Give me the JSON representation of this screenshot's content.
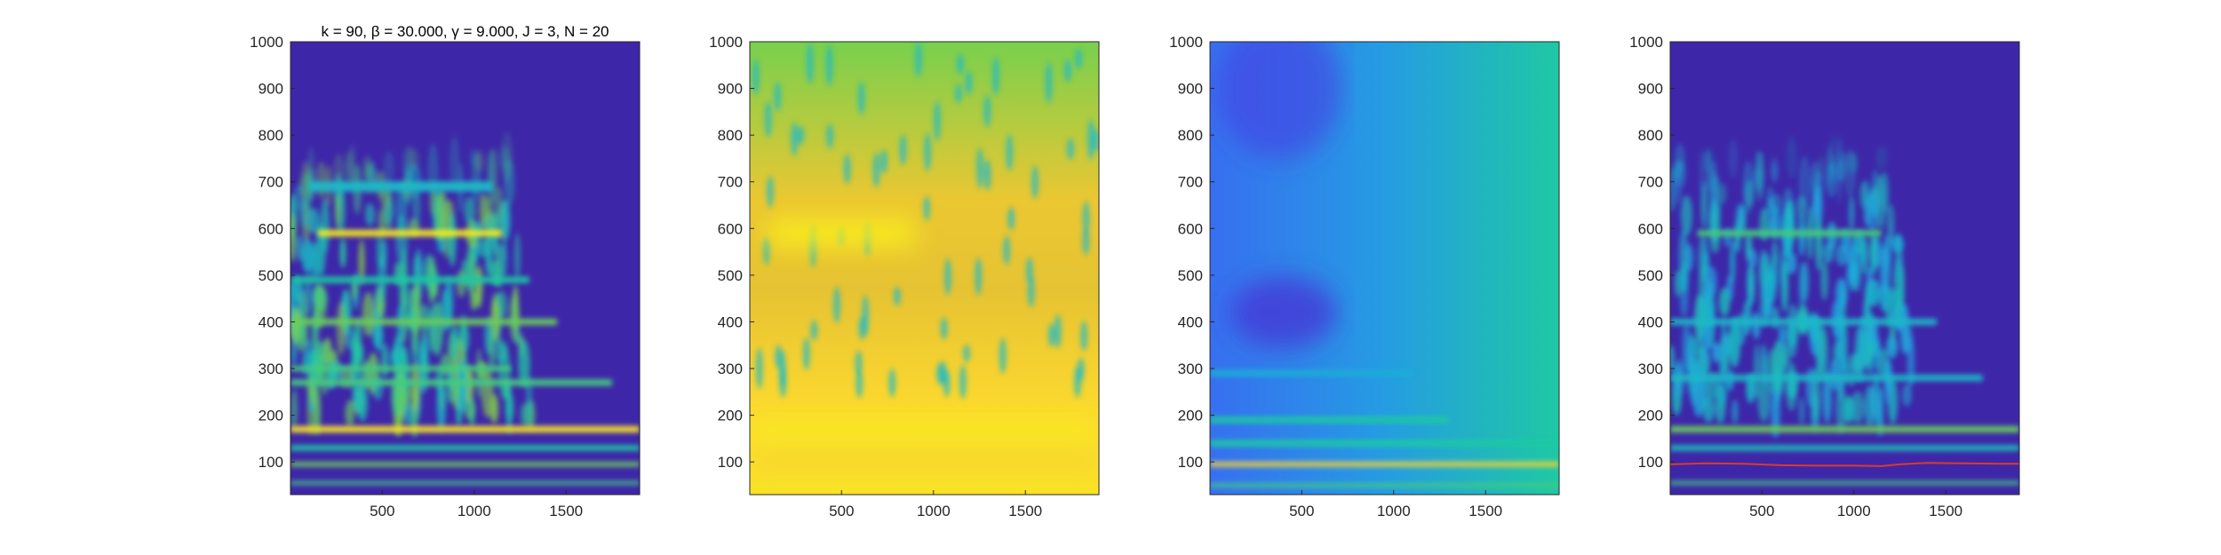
{
  "figure": {
    "title": "k = 90, β = 30.000, γ = 9.000, J = 3, N = 20"
  },
  "colors": {
    "background": "#3e26a8",
    "colormap": [
      "#3e26a8",
      "#4743f0",
      "#2d8cf0",
      "#19b5d0",
      "#1fc8a4",
      "#7cd04a",
      "#e0bd34",
      "#fbd730",
      "#f9fb15"
    ],
    "ridge_line": "#d93b2b"
  },
  "chart_data": [
    {
      "type": "heatmap",
      "panel": "spectrogram-1",
      "title": "k = 90, β = 30.000, γ = 9.000, J = 3, N = 20",
      "xlabel": "",
      "ylabel": "",
      "xlim": [
        1,
        1900
      ],
      "ylim": [
        30,
        1000
      ],
      "xticks": [
        500,
        1000,
        1500
      ],
      "yticks": [
        100,
        200,
        300,
        400,
        500,
        600,
        700,
        800,
        900,
        1000
      ],
      "grid": false,
      "bands": [
        {
          "y": 55,
          "x0": 1,
          "x1": 1900,
          "intensity": 0.55,
          "width": 8
        },
        {
          "y": 95,
          "x0": 1,
          "x1": 1900,
          "intensity": 0.6,
          "width": 10
        },
        {
          "y": 130,
          "x0": 1,
          "x1": 1900,
          "intensity": 0.5,
          "width": 12
        },
        {
          "y": 170,
          "x0": 1,
          "x1": 1900,
          "intensity": 0.92,
          "width": 14
        },
        {
          "y": 270,
          "x0": 1,
          "x1": 1750,
          "intensity": 0.55,
          "width": 14
        },
        {
          "y": 300,
          "x0": 1,
          "x1": 1200,
          "intensity": 0.55,
          "width": 12
        },
        {
          "y": 400,
          "x0": 1,
          "x1": 1450,
          "intensity": 0.6,
          "width": 14
        },
        {
          "y": 490,
          "x0": 1,
          "x1": 1300,
          "intensity": 0.5,
          "width": 14
        },
        {
          "y": 590,
          "x0": 150,
          "x1": 1150,
          "intensity": 0.95,
          "width": 14
        },
        {
          "y": 690,
          "x0": 100,
          "x1": 1100,
          "intensity": 0.4,
          "width": 22
        }
      ]
    },
    {
      "type": "heatmap",
      "panel": "spectrogram-2",
      "xlabel": "",
      "ylabel": "",
      "xlim": [
        1,
        1900
      ],
      "ylim": [
        30,
        1000
      ],
      "xticks": [
        500,
        1000,
        1500
      ],
      "yticks": [
        100,
        200,
        300,
        400,
        500,
        600,
        700,
        800,
        900,
        1000
      ],
      "grid": false,
      "bands": [
        {
          "y": 100,
          "x0": 1,
          "x1": 1900,
          "intensity": 0.85,
          "width": 30
        },
        {
          "y": 170,
          "x0": 1,
          "x1": 1900,
          "intensity": 0.97,
          "width": 28
        },
        {
          "y": 590,
          "x0": 100,
          "x1": 900,
          "intensity": 0.95,
          "width": 60
        }
      ]
    },
    {
      "type": "heatmap",
      "panel": "spectrogram-3",
      "xlabel": "",
      "ylabel": "",
      "xlim": [
        1,
        1900
      ],
      "ylim": [
        30,
        1000
      ],
      "xticks": [
        500,
        1000,
        1500
      ],
      "yticks": [
        100,
        200,
        300,
        400,
        500,
        600,
        700,
        800,
        900,
        1000
      ],
      "grid": false,
      "bands": [
        {
          "y": 50,
          "x0": 1,
          "x1": 1900,
          "intensity": 0.55,
          "width": 8
        },
        {
          "y": 95,
          "x0": 1,
          "x1": 1900,
          "intensity": 0.85,
          "width": 10
        },
        {
          "y": 140,
          "x0": 1,
          "x1": 1900,
          "intensity": 0.5,
          "width": 14
        },
        {
          "y": 190,
          "x0": 1,
          "x1": 1300,
          "intensity": 0.5,
          "width": 14
        },
        {
          "y": 290,
          "x0": 1,
          "x1": 1100,
          "intensity": 0.35,
          "width": 14
        }
      ]
    },
    {
      "type": "heatmap",
      "panel": "spectrogram-4",
      "xlabel": "",
      "ylabel": "",
      "xlim": [
        1,
        1900
      ],
      "ylim": [
        30,
        1000
      ],
      "xticks": [
        500,
        1000,
        1500
      ],
      "yticks": [
        100,
        200,
        300,
        400,
        500,
        600,
        700,
        800,
        900,
        1000
      ],
      "grid": false,
      "bands": [
        {
          "y": 55,
          "x0": 1,
          "x1": 1900,
          "intensity": 0.55,
          "width": 8
        },
        {
          "y": 130,
          "x0": 1,
          "x1": 1900,
          "intensity": 0.45,
          "width": 12
        },
        {
          "y": 170,
          "x0": 1,
          "x1": 1900,
          "intensity": 0.6,
          "width": 14
        },
        {
          "y": 280,
          "x0": 1,
          "x1": 1700,
          "intensity": 0.4,
          "width": 14
        },
        {
          "y": 400,
          "x0": 1,
          "x1": 1450,
          "intensity": 0.4,
          "width": 14
        },
        {
          "y": 590,
          "x0": 150,
          "x1": 1150,
          "intensity": 0.55,
          "width": 14
        }
      ],
      "ridge": {
        "x": [
          1,
          200,
          400,
          600,
          800,
          1000,
          1150,
          1250,
          1400,
          1600,
          1800,
          1900
        ],
        "y": [
          95,
          97,
          96,
          93,
          92,
          92,
          91,
          95,
          98,
          97,
          96,
          96
        ]
      }
    }
  ]
}
